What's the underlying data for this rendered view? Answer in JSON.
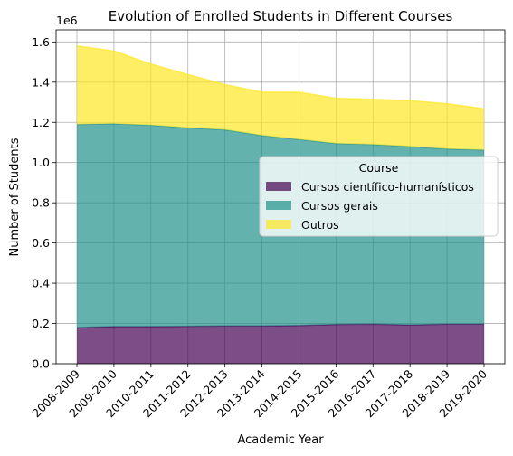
{
  "chart_data": {
    "type": "area",
    "stacked": true,
    "title": "Evolution of Enrolled Students in Different Courses",
    "xlabel": "Academic Year",
    "ylabel": "Number of Students",
    "y_offset_text": "1e6",
    "categories": [
      "2008-2009",
      "2009-2010",
      "2010-2011",
      "2011-2012",
      "2012-2013",
      "2013-2014",
      "2014-2015",
      "2015-2016",
      "2016-2017",
      "2017-2018",
      "2018-2019",
      "2019-2020"
    ],
    "ylim": [
      0,
      1.66
    ],
    "y_ticks": [
      0.0,
      0.2,
      0.4,
      0.6,
      0.8,
      1.0,
      1.2,
      1.4,
      1.6
    ],
    "y_tick_labels": [
      "0.0",
      "0.2",
      "0.4",
      "0.6",
      "0.8",
      "1.0",
      "1.2",
      "1.4",
      "1.6"
    ],
    "grid": true,
    "legend": {
      "title": "Course",
      "placement": "center-right"
    },
    "series": [
      {
        "name": "Cursos científico-humanísticos",
        "color": "#440154",
        "values": [
          0.18,
          0.185,
          0.185,
          0.186,
          0.188,
          0.188,
          0.19,
          0.195,
          0.197,
          0.193,
          0.197,
          0.197
        ]
      },
      {
        "name": "Cursos gerais",
        "color": "#21918c",
        "values": [
          1.01,
          1.008,
          1.001,
          0.987,
          0.975,
          0.947,
          0.925,
          0.9,
          0.893,
          0.887,
          0.871,
          0.866
        ]
      },
      {
        "name": "Outros",
        "color": "#fde725",
        "values": [
          0.39,
          0.362,
          0.304,
          0.265,
          0.225,
          0.215,
          0.235,
          0.225,
          0.225,
          0.228,
          0.225,
          0.205
        ]
      }
    ]
  }
}
